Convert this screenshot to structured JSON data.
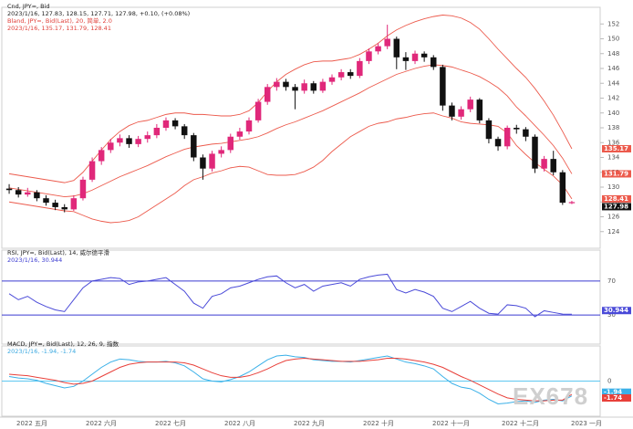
{
  "chart_data": [
    {
      "type": "candlestick",
      "legend_lines": [
        "Cnd, JPY=, Bid",
        "2023/1/16, 127.83, 128.15, 127.71, 127.98, +0.10, (+0.08%)",
        "Bland, JPY=, Bid(Last), 20, 简单, 2.0",
        "2023/1/16, 135.17, 131.79, 128.41"
      ],
      "legend_colors": [
        "#222222",
        "#222222",
        "#e0403a",
        "#e0403a"
      ],
      "up_color": "#e0287a",
      "down_color": "#111111",
      "band_color": "#ec5a4c",
      "open": [
        129.8,
        129.6,
        129.0,
        129.3,
        128.5,
        127.9,
        127.3,
        127.0,
        128.5,
        131.0,
        133.5,
        135.0,
        136.0,
        136.6,
        135.8,
        136.5,
        137.0,
        138.0,
        139.0,
        138.2,
        137.0,
        134.0,
        132.5,
        134.5,
        135.0,
        136.8,
        137.5,
        139.0,
        141.5,
        143.5,
        144.2,
        143.5,
        143.0,
        144.0,
        143.0,
        144.2,
        144.8,
        145.5,
        145.0,
        147.0,
        148.3,
        149.0,
        150.0,
        147.5,
        147.0,
        148.0,
        147.5,
        146.2,
        141.0,
        139.5,
        140.5,
        141.8,
        139.0,
        136.5,
        135.5,
        138.0,
        137.8,
        136.8,
        132.5,
        133.8,
        132.0,
        127.83
      ],
      "high": [
        130.4,
        130.0,
        129.9,
        129.6,
        128.9,
        128.3,
        127.7,
        128.9,
        131.4,
        134.0,
        135.4,
        136.5,
        137.1,
        137.0,
        136.9,
        137.5,
        138.5,
        139.4,
        139.3,
        138.5,
        137.3,
        134.4,
        134.9,
        135.5,
        137.2,
        138.0,
        139.4,
        141.9,
        143.9,
        144.7,
        144.6,
        143.9,
        144.5,
        144.3,
        144.6,
        145.2,
        145.9,
        145.9,
        147.4,
        148.7,
        149.4,
        151.9,
        150.3,
        148.2,
        148.4,
        148.3,
        147.8,
        146.5,
        141.4,
        140.9,
        142.2,
        142.0,
        139.3,
        136.8,
        138.3,
        138.4,
        138.1,
        137.1,
        134.2,
        134.9,
        132.3,
        128.15
      ],
      "low": [
        129.1,
        128.6,
        128.7,
        128.1,
        127.5,
        126.9,
        126.6,
        126.8,
        128.2,
        130.7,
        133.0,
        134.6,
        135.5,
        135.3,
        135.4,
        136.0,
        136.6,
        137.6,
        137.8,
        136.5,
        133.5,
        131.0,
        132.1,
        134.0,
        134.6,
        136.4,
        137.1,
        138.7,
        141.1,
        143.0,
        143.0,
        140.5,
        142.6,
        142.6,
        142.7,
        143.8,
        144.4,
        144.6,
        144.7,
        146.6,
        147.9,
        148.6,
        145.9,
        145.8,
        146.6,
        146.9,
        145.8,
        140.3,
        139.0,
        139.1,
        140.1,
        138.6,
        135.9,
        134.9,
        135.1,
        137.2,
        136.2,
        131.9,
        132.1,
        131.6,
        127.6,
        127.71
      ],
      "close": [
        129.6,
        129.0,
        129.3,
        128.5,
        127.9,
        127.3,
        127.0,
        128.5,
        131.0,
        133.5,
        135.0,
        136.0,
        136.6,
        135.8,
        136.5,
        137.0,
        138.0,
        139.0,
        138.2,
        137.0,
        134.0,
        132.5,
        134.5,
        135.0,
        136.8,
        137.5,
        139.0,
        141.5,
        143.5,
        144.2,
        143.5,
        143.0,
        144.0,
        143.0,
        144.2,
        144.8,
        145.5,
        145.0,
        147.0,
        148.3,
        149.0,
        150.0,
        147.5,
        147.0,
        148.0,
        147.5,
        146.2,
        141.0,
        139.5,
        140.5,
        141.8,
        139.0,
        136.5,
        135.5,
        138.0,
        137.8,
        136.8,
        132.5,
        133.8,
        132.0,
        127.9,
        127.98
      ],
      "bands": {
        "upper": [
          131.8,
          131.6,
          131.4,
          131.2,
          131.0,
          130.8,
          130.6,
          130.9,
          132.0,
          133.5,
          135.0,
          136.4,
          137.5,
          138.3,
          138.8,
          139.0,
          139.4,
          139.8,
          140.0,
          140.0,
          139.8,
          139.8,
          139.7,
          139.6,
          139.6,
          139.8,
          140.3,
          141.4,
          142.9,
          144.2,
          145.2,
          145.9,
          146.5,
          146.9,
          147.0,
          147.0,
          147.2,
          147.4,
          147.9,
          148.6,
          149.4,
          150.4,
          151.2,
          151.8,
          152.3,
          152.7,
          153.0,
          153.2,
          153.1,
          152.8,
          152.2,
          151.3,
          150.0,
          148.6,
          147.3,
          146.0,
          144.8,
          143.3,
          141.6,
          139.7,
          137.5,
          135.17
        ],
        "middle": [
          129.9,
          129.7,
          129.5,
          129.3,
          129.1,
          128.9,
          128.7,
          128.8,
          129.1,
          129.6,
          130.2,
          130.8,
          131.4,
          131.9,
          132.4,
          132.9,
          133.5,
          134.1,
          134.6,
          135.1,
          135.4,
          135.6,
          135.8,
          135.9,
          136.1,
          136.3,
          136.5,
          136.8,
          137.3,
          137.9,
          138.4,
          138.8,
          139.3,
          139.8,
          140.3,
          140.9,
          141.5,
          142.1,
          142.7,
          143.4,
          144.0,
          144.6,
          145.2,
          145.6,
          146.0,
          146.3,
          146.5,
          146.4,
          146.2,
          145.8,
          145.4,
          144.9,
          144.2,
          143.4,
          142.3,
          140.8,
          139.6,
          138.3,
          137.0,
          135.6,
          133.9,
          131.79
        ],
        "lower": [
          128.0,
          127.8,
          127.6,
          127.4,
          127.2,
          127.0,
          126.8,
          126.7,
          126.2,
          125.7,
          125.4,
          125.2,
          125.3,
          125.5,
          126.0,
          126.8,
          127.6,
          128.4,
          129.2,
          130.2,
          131.0,
          131.4,
          131.9,
          132.2,
          132.6,
          132.8,
          132.7,
          132.2,
          131.7,
          131.6,
          131.6,
          131.7,
          132.1,
          132.7,
          133.6,
          134.8,
          135.8,
          136.8,
          137.5,
          138.2,
          138.6,
          138.8,
          139.2,
          139.4,
          139.7,
          139.9,
          140.0,
          139.6,
          139.3,
          138.8,
          138.6,
          138.5,
          138.4,
          138.2,
          137.3,
          135.6,
          134.4,
          133.3,
          132.4,
          131.5,
          130.3,
          128.41
        ]
      },
      "ylim": [
        122,
        154
      ],
      "yticks": [
        124,
        126,
        128,
        130,
        132,
        134,
        136,
        138,
        140,
        142,
        144,
        146,
        148,
        150,
        152
      ]
    },
    {
      "type": "line",
      "legend_lines": [
        "RSI, JPY=, Bid(Last), 14, 威尔德平滑",
        "2023/1/16, 30.944"
      ],
      "legend_colors": [
        "#222222",
        "#3a3ad0"
      ],
      "series": [
        {
          "color": "#4a4ad8",
          "values": [
            55,
            48,
            52,
            45,
            40,
            36,
            34,
            48,
            62,
            70,
            72,
            74,
            73,
            66,
            69,
            70,
            72,
            74,
            66,
            58,
            44,
            38,
            52,
            55,
            62,
            64,
            68,
            72,
            75,
            76,
            68,
            62,
            66,
            58,
            64,
            66,
            68,
            64,
            72,
            75,
            77,
            78,
            60,
            56,
            60,
            57,
            52,
            38,
            34,
            40,
            46,
            38,
            32,
            31,
            42,
            41,
            38,
            28,
            35,
            33,
            31,
            30.944
          ]
        }
      ],
      "ylim": [
        0,
        100
      ],
      "yticks": [
        30,
        70
      ],
      "grid": true,
      "grid_color": "#3a3ad0"
    },
    {
      "type": "line",
      "legend_lines": [
        "MACD, JPY=, Bid(Last), 12, 26, 9, 指数",
        "2023/1/16, -1.94, -1.74"
      ],
      "legend_colors": [
        "#222222",
        "#3aa8e0"
      ],
      "series": [
        {
          "color": "#3ab0e8",
          "values": [
            0.6,
            0.4,
            0.3,
            0.1,
            -0.3,
            -0.6,
            -0.9,
            -0.7,
            0.0,
            0.9,
            1.8,
            2.5,
            2.9,
            2.8,
            2.6,
            2.5,
            2.5,
            2.6,
            2.4,
            2.0,
            1.2,
            0.3,
            0.0,
            -0.1,
            0.2,
            0.6,
            1.2,
            2.0,
            2.8,
            3.3,
            3.4,
            3.2,
            3.1,
            2.8,
            2.7,
            2.6,
            2.6,
            2.5,
            2.7,
            2.9,
            3.1,
            3.3,
            2.9,
            2.5,
            2.3,
            2.0,
            1.6,
            0.6,
            -0.3,
            -0.8,
            -1.0,
            -1.6,
            -2.4,
            -3.0,
            -2.9,
            -2.7,
            -2.6,
            -2.8,
            -2.5,
            -2.4,
            -2.6,
            -1.94
          ]
        },
        {
          "color": "#e8403a",
          "values": [
            0.9,
            0.8,
            0.7,
            0.5,
            0.3,
            0.1,
            -0.2,
            -0.4,
            -0.3,
            0.0,
            0.6,
            1.2,
            1.8,
            2.2,
            2.4,
            2.5,
            2.5,
            2.5,
            2.5,
            2.4,
            2.1,
            1.6,
            1.1,
            0.7,
            0.5,
            0.5,
            0.7,
            1.1,
            1.6,
            2.2,
            2.7,
            2.9,
            3.0,
            2.9,
            2.8,
            2.7,
            2.6,
            2.6,
            2.6,
            2.7,
            2.8,
            3.0,
            3.0,
            2.9,
            2.7,
            2.5,
            2.2,
            1.8,
            1.2,
            0.6,
            0.1,
            -0.5,
            -1.1,
            -1.7,
            -2.2,
            -2.4,
            -2.5,
            -2.6,
            -2.6,
            -2.5,
            -2.5,
            -1.74
          ]
        }
      ],
      "ylim": [
        -4.5,
        4.5
      ],
      "yticks": [
        0
      ],
      "grid": true,
      "grid_color": "#5ec8f0"
    }
  ],
  "x_labels": [
    "2022 五月",
    "2022 六月",
    "2022 七月",
    "2022 八月",
    "2022 九月",
    "2022 十月",
    "2022 十一月",
    "2022 十二月",
    "2023 一月"
  ],
  "watermark": "EX678"
}
